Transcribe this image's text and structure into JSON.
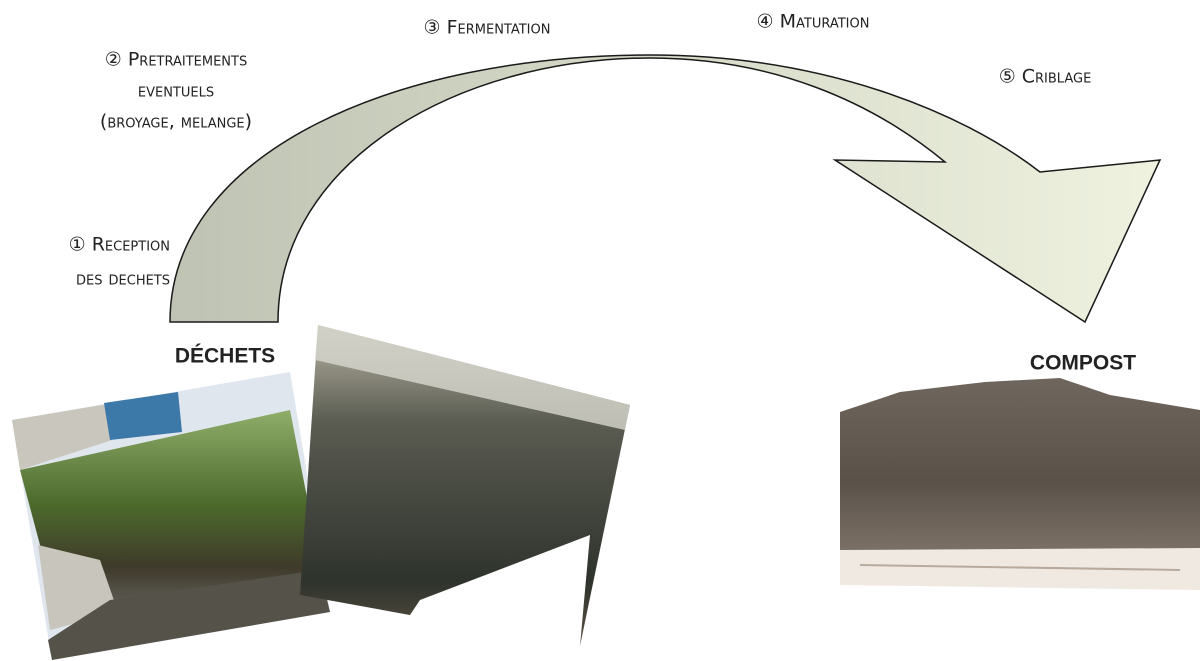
{
  "steps": [
    {
      "lines": [
        "① Reception",
        "des dechets"
      ]
    },
    {
      "lines": [
        "② Pretraitements",
        "eventuels",
        "(broyage, melange)"
      ]
    },
    {
      "lines": [
        "③ Fermentation"
      ]
    },
    {
      "lines": [
        "④ Maturation"
      ]
    },
    {
      "lines": [
        "⑤ Criblage"
      ]
    }
  ],
  "labels": {
    "input": "DÉCHETS",
    "output": "COMPOST"
  }
}
